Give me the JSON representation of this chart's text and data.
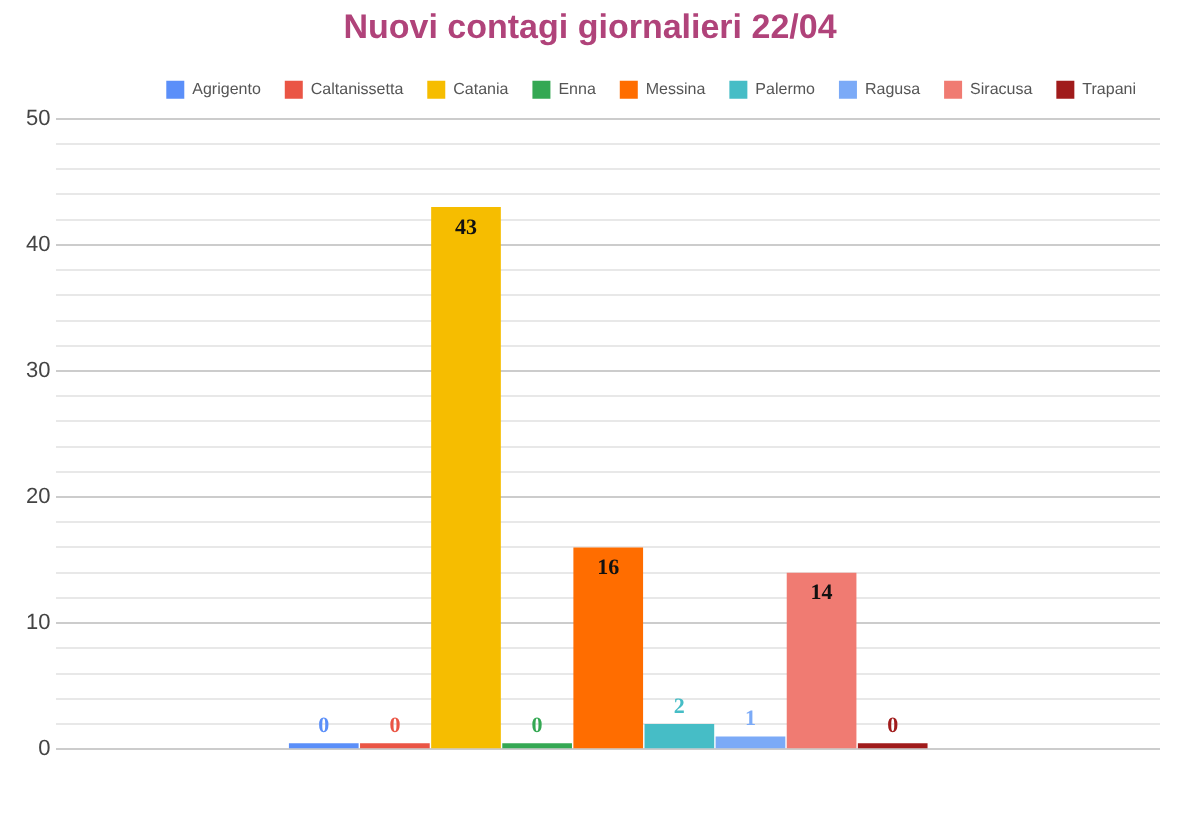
{
  "chart_data": {
    "type": "bar",
    "title": "Nuovi contagi giornalieri 22/04",
    "categories": [
      null
    ],
    "series": [
      {
        "name": "Agrigento",
        "color": "#5b8ff9",
        "values": [
          0
        ]
      },
      {
        "name": "Caltanissetta",
        "color": "#ea5545",
        "values": [
          0
        ]
      },
      {
        "name": "Catania",
        "color": "#f6bd00",
        "values": [
          43
        ]
      },
      {
        "name": "Enna",
        "color": "#34a853",
        "values": [
          0
        ]
      },
      {
        "name": "Messina",
        "color": "#ff6d00",
        "values": [
          16
        ]
      },
      {
        "name": "Palermo",
        "color": "#46bdc6",
        "values": [
          2
        ]
      },
      {
        "name": "Ragusa",
        "color": "#7baaf7",
        "values": [
          1
        ]
      },
      {
        "name": "Siracusa",
        "color": "#f07b72",
        "values": [
          14
        ]
      },
      {
        "name": "Trapani",
        "color": "#a01b1b",
        "values": [
          0
        ]
      }
    ],
    "ylim": [
      0,
      50
    ],
    "yticks": [
      0,
      {
        "value": 2,
        "label": null
      },
      {
        "value": 4,
        "label": null
      },
      {
        "value": 6,
        "label": null
      },
      {
        "value": 8,
        "label": null
      },
      10,
      {
        "value": 12,
        "label": null
      },
      {
        "value": 14,
        "label": null
      },
      {
        "value": 16,
        "label": null
      },
      {
        "value": 18,
        "label": null
      },
      20,
      {
        "value": 22,
        "label": null
      },
      {
        "value": 24,
        "label": null
      },
      {
        "value": 26,
        "label": null
      },
      {
        "value": 28,
        "label": null
      },
      30,
      {
        "value": 32,
        "label": null
      },
      {
        "value": 34,
        "label": null
      },
      {
        "value": 36,
        "label": null
      },
      {
        "value": 38,
        "label": null
      },
      40,
      {
        "value": 42,
        "label": null
      },
      {
        "value": 44,
        "label": null
      },
      {
        "value": 46,
        "label": null
      },
      {
        "value": 48,
        "label": null
      },
      50
    ],
    "grid": "y",
    "legend": "top right",
    "data_labels": true
  }
}
